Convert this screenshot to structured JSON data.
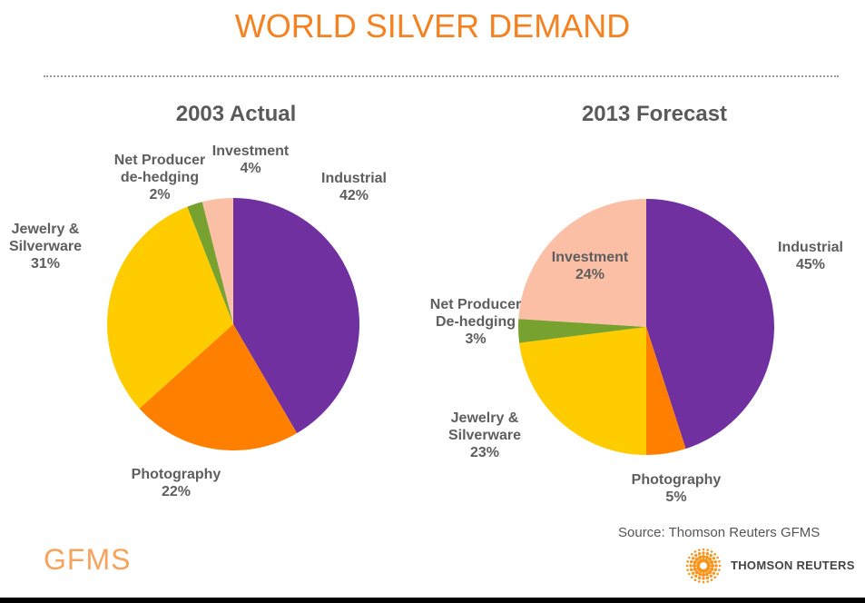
{
  "title": "WORLD SILVER DEMAND",
  "source": "Source: Thomson Reuters GFMS",
  "logos": {
    "left": "GFMS",
    "right": "THOMSON REUTERS"
  },
  "colors": {
    "Industrial": "#7030a0",
    "Photography": "#ff8000",
    "Jewelry": "#ffcc00",
    "NetProducer": "#78a22f",
    "Investment": "#fbbfa6",
    "title": "#f58220"
  },
  "chart_data": [
    {
      "type": "pie",
      "title": "2003 Actual",
      "slices": [
        {
          "key": "Industrial",
          "label": [
            "Industrial"
          ],
          "value": 42,
          "pct": "42%"
        },
        {
          "key": "Photography",
          "label": [
            "Photography"
          ],
          "value": 22,
          "pct": "22%"
        },
        {
          "key": "Jewelry",
          "label": [
            "Jewelry &",
            "Silverware"
          ],
          "value": 31,
          "pct": "31%"
        },
        {
          "key": "NetProducer",
          "label": [
            "Net Producer",
            "de-hedging"
          ],
          "value": 2,
          "pct": "2%"
        },
        {
          "key": "Investment",
          "label": [
            "Investment"
          ],
          "value": 4,
          "pct": "4%"
        }
      ]
    },
    {
      "type": "pie",
      "title": "2013 Forecast",
      "slices": [
        {
          "key": "Industrial",
          "label": [
            "Industrial"
          ],
          "value": 45,
          "pct": "45%"
        },
        {
          "key": "Photography",
          "label": [
            "Photography"
          ],
          "value": 5,
          "pct": "5%"
        },
        {
          "key": "Jewelry",
          "label": [
            "Jewelry &",
            "Silverware"
          ],
          "value": 23,
          "pct": "23%"
        },
        {
          "key": "NetProducer",
          "label": [
            "Net Producer",
            "De-hedging"
          ],
          "value": 3,
          "pct": "3%"
        },
        {
          "key": "Investment",
          "label": [
            "Investment"
          ],
          "value": 24,
          "pct": "24%"
        }
      ]
    }
  ]
}
